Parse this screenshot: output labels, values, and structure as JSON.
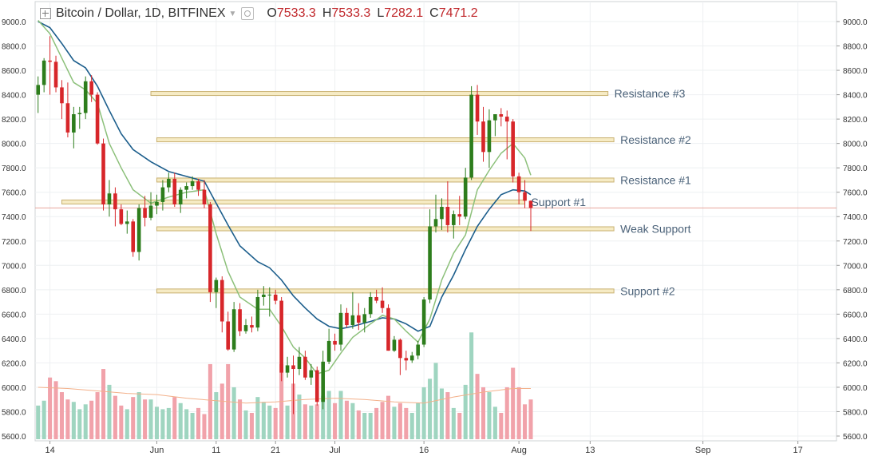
{
  "header": {
    "symbol_label": "Bitcoin / Dollar, 1D, BITFINEX",
    "ohlc": [
      {
        "key": "O",
        "value": "7533.3"
      },
      {
        "key": "H",
        "value": "7533.3"
      },
      {
        "key": "L",
        "value": "7282.1"
      },
      {
        "key": "C",
        "value": "7471.2"
      }
    ]
  },
  "icons": [
    "add-symbol-icon",
    "dropdown-caret-icon",
    "settings-icon"
  ],
  "colors": {
    "up": "#2d7d1c",
    "down": "#d7262a",
    "volume_up": "#9fd5c0",
    "volume_down": "#f1a2aa",
    "ema_fast": "#8cc07a",
    "ema_slow": "#1c5e8c",
    "volume_ma": "#f3b08a",
    "level_fill": "#f6ebc4",
    "level_border": "#c8b070",
    "price_line": "#e8a59b",
    "label": "#4a6178"
  },
  "chart_data": {
    "type": "candlestick",
    "title": "Bitcoin / Dollar, 1D, BITFINEX",
    "y_range": [
      5600,
      9100
    ],
    "y_ticks": [
      "5600.0",
      "5800.0",
      "6000.0",
      "6200.0",
      "6400.0",
      "6600.0",
      "6800.0",
      "7000.0",
      "7200.0",
      "7400.0",
      "7600.0",
      "7800.0",
      "8000.0",
      "8200.0",
      "8400.0",
      "8600.0",
      "8800.0",
      "9000.0"
    ],
    "x_ticks": [
      {
        "label": "14",
        "date": "2018-05-14"
      },
      {
        "label": "Jun",
        "date": "2018-06-01"
      },
      {
        "label": "11",
        "date": "2018-06-11"
      },
      {
        "label": "21",
        "date": "2018-06-21"
      },
      {
        "label": "Jul",
        "date": "2018-07-01"
      },
      {
        "label": "16",
        "date": "2018-07-16"
      },
      {
        "label": "Aug",
        "date": "2018-08-01"
      },
      {
        "label": "13",
        "date": "2018-08-13"
      },
      {
        "label": "Sep",
        "date": "2018-09-01"
      },
      {
        "label": "17",
        "date": "2018-09-17"
      }
    ],
    "x_range": [
      "2018-05-12",
      "2018-09-24"
    ],
    "candles": [
      [
        "2018-05-12",
        8400,
        8550,
        8250,
        8480,
        5850
      ],
      [
        "2018-05-13",
        8480,
        8700,
        8420,
        8680,
        5890
      ],
      [
        "2018-05-14",
        8680,
        8880,
        8400,
        8670,
        6080
      ],
      [
        "2018-05-15",
        8670,
        8720,
        8420,
        8460,
        6050
      ],
      [
        "2018-05-16",
        8460,
        8520,
        8200,
        8330,
        5960
      ],
      [
        "2018-05-17",
        8330,
        8500,
        8050,
        8090,
        5900
      ],
      [
        "2018-05-18",
        8090,
        8300,
        7960,
        8240,
        5880
      ],
      [
        "2018-05-19",
        8240,
        8300,
        8120,
        8250,
        5820
      ],
      [
        "2018-05-20",
        8250,
        8550,
        8200,
        8510,
        5860
      ],
      [
        "2018-05-21",
        8510,
        8560,
        8340,
        8400,
        5890
      ],
      [
        "2018-05-22",
        8400,
        8420,
        7990,
        8000,
        5960
      ],
      [
        "2018-05-23",
        8000,
        8040,
        7450,
        7500,
        6150
      ],
      [
        "2018-05-24",
        7500,
        7700,
        7400,
        7590,
        6020
      ],
      [
        "2018-05-25",
        7590,
        7640,
        7320,
        7460,
        5930
      ],
      [
        "2018-05-26",
        7460,
        7500,
        7330,
        7340,
        5850
      ],
      [
        "2018-05-27",
        7340,
        7450,
        7260,
        7360,
        5820
      ],
      [
        "2018-05-28",
        7360,
        7380,
        7070,
        7110,
        5920
      ],
      [
        "2018-05-29",
        7110,
        7500,
        7040,
        7470,
        5960
      ],
      [
        "2018-05-30",
        7470,
        7570,
        7320,
        7390,
        5900
      ],
      [
        "2018-05-31",
        7390,
        7600,
        7370,
        7490,
        5900
      ],
      [
        "2018-06-01",
        7490,
        7580,
        7420,
        7520,
        5840
      ],
      [
        "2018-06-02",
        7520,
        7700,
        7450,
        7640,
        5820
      ],
      [
        "2018-06-03",
        7640,
        7760,
        7600,
        7710,
        5830
      ],
      [
        "2018-06-04",
        7710,
        7760,
        7480,
        7500,
        5920
      ],
      [
        "2018-06-05",
        7500,
        7640,
        7430,
        7620,
        5870
      ],
      [
        "2018-06-06",
        7620,
        7680,
        7550,
        7650,
        5820
      ],
      [
        "2018-06-07",
        7650,
        7730,
        7620,
        7690,
        5790
      ],
      [
        "2018-06-08",
        7690,
        7710,
        7570,
        7620,
        5830
      ],
      [
        "2018-06-09",
        7620,
        7700,
        7470,
        7500,
        5780
      ],
      [
        "2018-06-10",
        7500,
        7520,
        6700,
        6780,
        6190
      ],
      [
        "2018-06-11",
        6780,
        6900,
        6650,
        6880,
        5960
      ],
      [
        "2018-06-12",
        6880,
        6910,
        6450,
        6540,
        6030
      ],
      [
        "2018-06-13",
        6540,
        6620,
        6300,
        6310,
        6190
      ],
      [
        "2018-06-14",
        6310,
        6700,
        6290,
        6640,
        6000
      ],
      [
        "2018-06-15",
        6640,
        6690,
        6420,
        6460,
        5900
      ],
      [
        "2018-06-16",
        6460,
        6560,
        6440,
        6510,
        5810
      ],
      [
        "2018-06-17",
        6510,
        6580,
        6450,
        6490,
        5790
      ],
      [
        "2018-06-18",
        6490,
        6800,
        6460,
        6740,
        5920
      ],
      [
        "2018-06-19",
        6740,
        6830,
        6670,
        6760,
        5880
      ],
      [
        "2018-06-20",
        6760,
        6820,
        6580,
        6760,
        5850
      ],
      [
        "2018-06-21",
        6760,
        6800,
        6680,
        6710,
        5830
      ],
      [
        "2018-06-22",
        6710,
        6740,
        6050,
        6120,
        6190
      ],
      [
        "2018-06-23",
        6120,
        6250,
        6080,
        6180,
        5850
      ],
      [
        "2018-06-24",
        6180,
        6260,
        5780,
        6150,
        6030
      ],
      [
        "2018-06-25",
        6150,
        6330,
        6100,
        6250,
        5940
      ],
      [
        "2018-06-26",
        6250,
        6300,
        6060,
        6080,
        5860
      ],
      [
        "2018-06-27",
        6080,
        6190,
        6020,
        6140,
        5850
      ],
      [
        "2018-06-28",
        6140,
        6170,
        5850,
        5880,
        5860
      ],
      [
        "2018-06-29",
        5880,
        6300,
        5820,
        6210,
        5930
      ],
      [
        "2018-06-30",
        6210,
        6480,
        6190,
        6380,
        5970
      ],
      [
        "2018-07-01",
        6380,
        6440,
        6300,
        6350,
        5870
      ],
      [
        "2018-07-02",
        6350,
        6680,
        6300,
        6610,
        5970
      ],
      [
        "2018-07-03",
        6610,
        6650,
        6490,
        6510,
        5890
      ],
      [
        "2018-07-04",
        6510,
        6780,
        6480,
        6590,
        5870
      ],
      [
        "2018-07-05",
        6590,
        6690,
        6470,
        6530,
        5810
      ],
      [
        "2018-07-06",
        6530,
        6650,
        6450,
        6600,
        5790
      ],
      [
        "2018-07-07",
        6600,
        6780,
        6570,
        6740,
        5790
      ],
      [
        "2018-07-08",
        6740,
        6800,
        6690,
        6710,
        5830
      ],
      [
        "2018-07-09",
        6710,
        6820,
        6610,
        6650,
        5880
      ],
      [
        "2018-07-10",
        6650,
        6680,
        6300,
        6300,
        5930
      ],
      [
        "2018-07-11",
        6300,
        6420,
        6290,
        6390,
        5840
      ],
      [
        "2018-07-12",
        6390,
        6400,
        6100,
        6240,
        5870
      ],
      [
        "2018-07-13",
        6240,
        6300,
        6140,
        6220,
        5830
      ],
      [
        "2018-07-14",
        6220,
        6290,
        6200,
        6260,
        5790
      ],
      [
        "2018-07-15",
        6260,
        6380,
        6230,
        6350,
        5870
      ],
      [
        "2018-07-16",
        6350,
        6740,
        6330,
        6720,
        6000
      ],
      [
        "2018-07-17",
        6720,
        7460,
        6690,
        7320,
        6070
      ],
      [
        "2018-07-18",
        7320,
        7580,
        7270,
        7380,
        6200
      ],
      [
        "2018-07-19",
        7380,
        7550,
        7290,
        7480,
        5990
      ],
      [
        "2018-07-20",
        7480,
        7690,
        7270,
        7330,
        5960
      ],
      [
        "2018-07-21",
        7330,
        7450,
        7220,
        7420,
        5830
      ],
      [
        "2018-07-22",
        7420,
        7570,
        7330,
        7400,
        5790
      ],
      [
        "2018-07-23",
        7400,
        7800,
        7380,
        7720,
        6020
      ],
      [
        "2018-07-24",
        7720,
        8470,
        7700,
        8400,
        6450
      ],
      [
        "2018-07-25",
        8400,
        8480,
        8070,
        8180,
        6110
      ],
      [
        "2018-07-26",
        8180,
        8300,
        7850,
        7930,
        6000
      ],
      [
        "2018-07-27",
        7930,
        8280,
        7800,
        8190,
        5960
      ],
      [
        "2018-07-28",
        8190,
        8240,
        8060,
        8240,
        5840
      ],
      [
        "2018-07-29",
        8240,
        8290,
        8140,
        8220,
        5790
      ],
      [
        "2018-07-30",
        8220,
        8270,
        7870,
        8180,
        6000
      ],
      [
        "2018-07-31",
        8180,
        8200,
        7680,
        7730,
        6160
      ],
      [
        "2018-08-01",
        7730,
        7760,
        7500,
        7600,
        6000
      ],
      [
        "2018-08-02",
        7600,
        7700,
        7470,
        7530,
        5860
      ],
      [
        "2018-08-03",
        7530,
        7533,
        7282,
        7471,
        5900
      ]
    ],
    "ema_fast": [
      [
        "2018-05-12",
        9010
      ],
      [
        "2018-05-14",
        8900
      ],
      [
        "2018-05-16",
        8700
      ],
      [
        "2018-05-18",
        8500
      ],
      [
        "2018-05-20",
        8440
      ],
      [
        "2018-05-22",
        8330
      ],
      [
        "2018-05-24",
        8000
      ],
      [
        "2018-05-26",
        7800
      ],
      [
        "2018-05-28",
        7620
      ],
      [
        "2018-05-31",
        7510
      ],
      [
        "2018-06-03",
        7560
      ],
      [
        "2018-06-06",
        7600
      ],
      [
        "2018-06-09",
        7620
      ],
      [
        "2018-06-11",
        7260
      ],
      [
        "2018-06-13",
        6950
      ],
      [
        "2018-06-15",
        6740
      ],
      [
        "2018-06-18",
        6640
      ],
      [
        "2018-06-20",
        6640
      ],
      [
        "2018-06-22",
        6500
      ],
      [
        "2018-06-24",
        6330
      ],
      [
        "2018-06-26",
        6240
      ],
      [
        "2018-06-28",
        6110
      ],
      [
        "2018-06-30",
        6140
      ],
      [
        "2018-07-02",
        6280
      ],
      [
        "2018-07-04",
        6410
      ],
      [
        "2018-07-07",
        6520
      ],
      [
        "2018-07-09",
        6590
      ],
      [
        "2018-07-11",
        6560
      ],
      [
        "2018-07-13",
        6460
      ],
      [
        "2018-07-15",
        6370
      ],
      [
        "2018-07-17",
        6560
      ],
      [
        "2018-07-19",
        6880
      ],
      [
        "2018-07-21",
        7100
      ],
      [
        "2018-07-23",
        7250
      ],
      [
        "2018-07-25",
        7620
      ],
      [
        "2018-07-27",
        7780
      ],
      [
        "2018-07-29",
        7920
      ],
      [
        "2018-07-31",
        8000
      ],
      [
        "2018-08-02",
        7880
      ],
      [
        "2018-08-03",
        7740
      ]
    ],
    "ema_slow": [
      [
        "2018-05-12",
        9000
      ],
      [
        "2018-05-14",
        8950
      ],
      [
        "2018-05-16",
        8820
      ],
      [
        "2018-05-18",
        8680
      ],
      [
        "2018-05-20",
        8620
      ],
      [
        "2018-05-22",
        8470
      ],
      [
        "2018-05-24",
        8270
      ],
      [
        "2018-05-26",
        8080
      ],
      [
        "2018-05-28",
        7950
      ],
      [
        "2018-05-31",
        7850
      ],
      [
        "2018-06-03",
        7770
      ],
      [
        "2018-06-06",
        7730
      ],
      [
        "2018-06-09",
        7690
      ],
      [
        "2018-06-11",
        7510
      ],
      [
        "2018-06-13",
        7330
      ],
      [
        "2018-06-15",
        7160
      ],
      [
        "2018-06-18",
        7030
      ],
      [
        "2018-06-20",
        6980
      ],
      [
        "2018-06-22",
        6880
      ],
      [
        "2018-06-24",
        6750
      ],
      [
        "2018-06-26",
        6650
      ],
      [
        "2018-06-28",
        6560
      ],
      [
        "2018-06-30",
        6500
      ],
      [
        "2018-07-02",
        6480
      ],
      [
        "2018-07-04",
        6500
      ],
      [
        "2018-07-07",
        6540
      ],
      [
        "2018-07-09",
        6570
      ],
      [
        "2018-07-11",
        6560
      ],
      [
        "2018-07-13",
        6520
      ],
      [
        "2018-07-15",
        6460
      ],
      [
        "2018-07-17",
        6500
      ],
      [
        "2018-07-19",
        6740
      ],
      [
        "2018-07-21",
        6920
      ],
      [
        "2018-07-23",
        7130
      ],
      [
        "2018-07-25",
        7320
      ],
      [
        "2018-07-27",
        7460
      ],
      [
        "2018-07-29",
        7580
      ],
      [
        "2018-07-31",
        7620
      ],
      [
        "2018-08-02",
        7610
      ],
      [
        "2018-08-03",
        7580
      ]
    ],
    "volume_ma": [
      [
        "2018-05-12",
        6000
      ],
      [
        "2018-05-17",
        5990
      ],
      [
        "2018-05-22",
        5970
      ],
      [
        "2018-05-27",
        5950
      ],
      [
        "2018-06-01",
        5940
      ],
      [
        "2018-06-06",
        5910
      ],
      [
        "2018-06-11",
        5890
      ],
      [
        "2018-06-16",
        5870
      ],
      [
        "2018-06-21",
        5880
      ],
      [
        "2018-06-26",
        5900
      ],
      [
        "2018-07-01",
        5910
      ],
      [
        "2018-07-06",
        5900
      ],
      [
        "2018-07-11",
        5880
      ],
      [
        "2018-07-16",
        5870
      ],
      [
        "2018-07-21",
        5920
      ],
      [
        "2018-07-26",
        5960
      ],
      [
        "2018-07-31",
        5990
      ],
      [
        "2018-08-03",
        5990
      ]
    ],
    "current_price": 7471.2,
    "current_price_label": "7471.2",
    "levels": [
      {
        "label": "Resistance #3",
        "price": 8410,
        "from": "2018-05-31",
        "to": "2018-08-16"
      },
      {
        "label": "Resistance #2",
        "price": 8030,
        "from": "2018-06-01",
        "to": "2018-08-17"
      },
      {
        "label": "Resistance #1",
        "price": 7700,
        "from": "2018-06-01",
        "to": "2018-08-17"
      },
      {
        "label": "Support #1",
        "price": 7520,
        "from": "2018-05-16",
        "to": "2018-08-02"
      },
      {
        "label": "Weak Support",
        "price": 7300,
        "from": "2018-06-01",
        "to": "2018-08-17"
      },
      {
        "label": "Support #2",
        "price": 6790,
        "from": "2018-06-01",
        "to": "2018-08-17"
      }
    ]
  }
}
